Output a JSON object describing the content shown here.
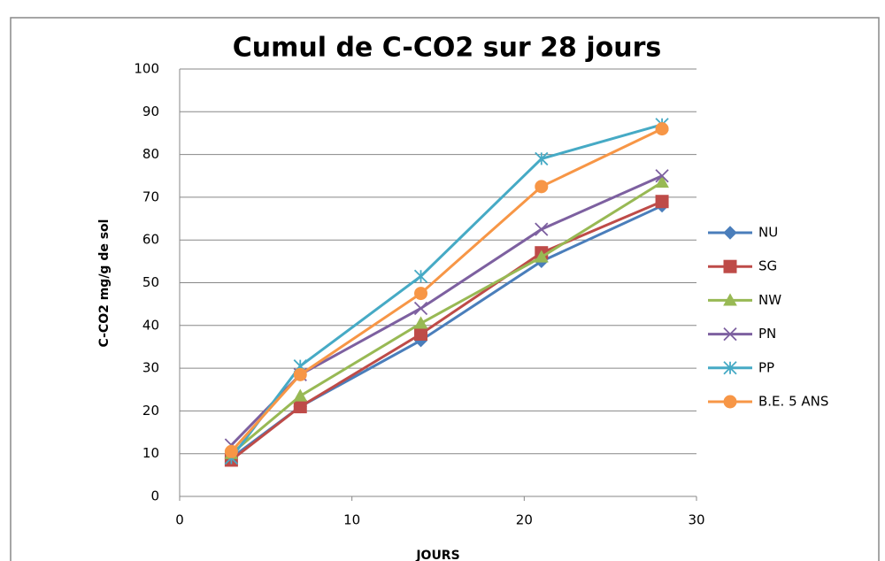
{
  "chart_data": {
    "type": "line",
    "title": "Cumul de C-CO2 sur 28 jours",
    "xlabel": "JOURS",
    "ylabel": "C-CO2 mg/g de sol",
    "x": [
      3,
      7,
      14,
      21,
      28
    ],
    "series": [
      {
        "name": "NU",
        "color": "#4a7ebb",
        "marker": "diamond",
        "values": [
          9,
          21,
          36.5,
          55,
          68
        ]
      },
      {
        "name": "SG",
        "color": "#be4b48",
        "marker": "square",
        "values": [
          8.5,
          21,
          38,
          57,
          69
        ]
      },
      {
        "name": "NW",
        "color": "#98b954",
        "marker": "triangle",
        "values": [
          10,
          23.5,
          40.5,
          56,
          73.5
        ]
      },
      {
        "name": "PN",
        "color": "#7d60a0",
        "marker": "x",
        "values": [
          12,
          28.5,
          44,
          62.5,
          75
        ]
      },
      {
        "name": "PP",
        "color": "#46aac5",
        "marker": "star",
        "values": [
          9,
          30.5,
          51.5,
          79,
          87
        ]
      },
      {
        "name": "B.E. 5 ANS",
        "color": "#f79646",
        "marker": "circle",
        "values": [
          10.5,
          28.5,
          47.5,
          72.5,
          86
        ]
      }
    ],
    "xlim": [
      0,
      30
    ],
    "xticks": [
      0,
      10,
      20,
      30
    ],
    "ylim": [
      0,
      100
    ],
    "yticks": [
      0,
      10,
      20,
      30,
      40,
      50,
      60,
      70,
      80,
      90,
      100
    ],
    "grid": true,
    "legend": "right"
  }
}
